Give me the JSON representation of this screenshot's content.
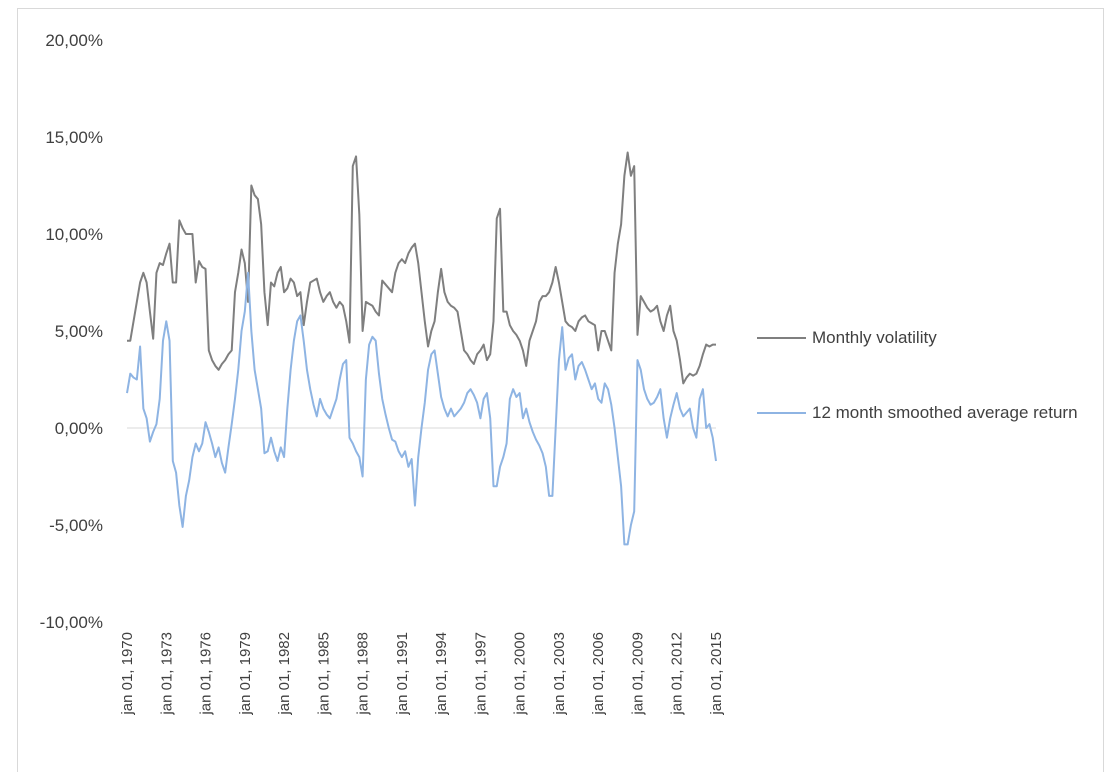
{
  "chart_data": {
    "type": "line",
    "categories": [
      "jan 01, 1970",
      null,
      null,
      null,
      null,
      null,
      null,
      null,
      null,
      null,
      null,
      null,
      "jan 01, 1973",
      null,
      null,
      null,
      null,
      null,
      null,
      null,
      null,
      null,
      null,
      null,
      "jan 01, 1976",
      null,
      null,
      null,
      null,
      null,
      null,
      null,
      null,
      null,
      null,
      null,
      "jan 01, 1979",
      null,
      null,
      null,
      null,
      null,
      null,
      null,
      null,
      null,
      null,
      null,
      "jan 01, 1982",
      null,
      null,
      null,
      null,
      null,
      null,
      null,
      null,
      null,
      null,
      null,
      "jan 01, 1985",
      null,
      null,
      null,
      null,
      null,
      null,
      null,
      null,
      null,
      null,
      null,
      "jan 01, 1988",
      null,
      null,
      null,
      null,
      null,
      null,
      null,
      null,
      null,
      null,
      null,
      "jan 01, 1991",
      null,
      null,
      null,
      null,
      null,
      null,
      null,
      null,
      null,
      null,
      null,
      "jan 01, 1994",
      null,
      null,
      null,
      null,
      null,
      null,
      null,
      null,
      null,
      null,
      null,
      "jan 01, 1997",
      null,
      null,
      null,
      null,
      null,
      null,
      null,
      null,
      null,
      null,
      null,
      "jan 01, 2000",
      null,
      null,
      null,
      null,
      null,
      null,
      null,
      null,
      null,
      null,
      null,
      "jan 01, 2003",
      null,
      null,
      null,
      null,
      null,
      null,
      null,
      null,
      null,
      null,
      null,
      "jan 01, 2006",
      null,
      null,
      null,
      null,
      null,
      null,
      null,
      null,
      null,
      null,
      null,
      "jan 01, 2009",
      null,
      null,
      null,
      null,
      null,
      null,
      null,
      null,
      null,
      null,
      null,
      "jan 01, 2012",
      null,
      null,
      null,
      null,
      null,
      null,
      null,
      null,
      null,
      null,
      null,
      "jan 01, 2015"
    ],
    "series": [
      {
        "name": "Monthly volatility",
        "color": "#7f7f7f",
        "values": [
          4.5,
          4.5,
          5.5,
          6.5,
          7.5,
          8.0,
          7.5,
          6.0,
          4.6,
          8.0,
          8.5,
          8.4,
          9.0,
          9.5,
          7.5,
          7.5,
          10.7,
          10.3,
          10.0,
          10.0,
          10.0,
          7.5,
          8.6,
          8.3,
          8.2,
          4.0,
          3.5,
          3.2,
          3.0,
          3.3,
          3.5,
          3.8,
          4.0,
          7.0,
          8.0,
          9.2,
          8.5,
          6.5,
          12.5,
          12.0,
          11.8,
          10.5,
          7.0,
          5.3,
          7.5,
          7.3,
          8.0,
          8.3,
          7.0,
          7.2,
          7.7,
          7.5,
          6.8,
          7.0,
          5.3,
          6.5,
          7.5,
          7.6,
          7.7,
          7.0,
          6.5,
          6.8,
          7.0,
          6.5,
          6.2,
          6.5,
          6.3,
          5.5,
          4.4,
          13.5,
          14.0,
          11.0,
          5.0,
          6.5,
          6.4,
          6.3,
          6.0,
          5.8,
          7.6,
          7.4,
          7.2,
          7.0,
          8.0,
          8.5,
          8.7,
          8.5,
          9.0,
          9.3,
          9.5,
          8.5,
          7.0,
          5.5,
          4.2,
          5.0,
          5.5,
          7.0,
          8.2,
          7.0,
          6.5,
          6.3,
          6.2,
          6.0,
          5.0,
          4.0,
          3.8,
          3.5,
          3.3,
          3.8,
          4.0,
          4.3,
          3.5,
          3.8,
          5.5,
          10.8,
          11.3,
          6.0,
          6.0,
          5.3,
          5.0,
          4.8,
          4.5,
          4.0,
          3.2,
          4.5,
          5.0,
          5.5,
          6.5,
          6.8,
          6.8,
          7.0,
          7.5,
          8.3,
          7.5,
          6.5,
          5.5,
          5.3,
          5.2,
          5.0,
          5.5,
          5.7,
          5.8,
          5.5,
          5.4,
          5.3,
          4.0,
          5.0,
          5.0,
          4.5,
          4.0,
          8.0,
          9.5,
          10.5,
          13.0,
          14.2,
          13.0,
          13.5,
          4.8,
          6.8,
          6.5,
          6.2,
          6.0,
          6.1,
          6.3,
          5.5,
          5.0,
          5.8,
          6.3,
          5.0,
          4.5,
          3.5,
          2.3,
          2.6,
          2.8,
          2.7,
          2.8,
          3.2,
          3.8,
          4.3,
          4.2,
          4.3,
          4.3
        ]
      },
      {
        "name": "12 month smoothed average return",
        "color": "#8eb4e3",
        "values": [
          1.8,
          2.8,
          2.6,
          2.5,
          4.2,
          1.0,
          0.5,
          -0.7,
          -0.2,
          0.2,
          1.5,
          4.5,
          5.5,
          4.5,
          -1.7,
          -2.3,
          -4.0,
          -5.1,
          -3.5,
          -2.7,
          -1.5,
          -0.8,
          -1.2,
          -0.8,
          0.3,
          -0.2,
          -0.8,
          -1.5,
          -1.0,
          -1.8,
          -2.3,
          -1.0,
          0.2,
          1.5,
          3.0,
          5.0,
          6.0,
          8.0,
          5.0,
          3.0,
          2.0,
          1.0,
          -1.3,
          -1.2,
          -0.5,
          -1.2,
          -1.7,
          -1.0,
          -1.5,
          1.0,
          3.0,
          4.5,
          5.5,
          5.8,
          4.5,
          3.0,
          2.0,
          1.2,
          0.6,
          1.5,
          1.0,
          0.7,
          0.5,
          1.0,
          1.5,
          2.5,
          3.3,
          3.5,
          -0.5,
          -0.8,
          -1.2,
          -1.5,
          -2.5,
          2.5,
          4.3,
          4.7,
          4.5,
          2.8,
          1.5,
          0.7,
          0.0,
          -0.6,
          -0.7,
          -1.2,
          -1.5,
          -1.2,
          -2.0,
          -1.6,
          -4.0,
          -1.5,
          0.0,
          1.3,
          3.0,
          3.8,
          4.0,
          2.8,
          1.6,
          1.0,
          0.6,
          1.0,
          0.6,
          0.8,
          1.0,
          1.3,
          1.8,
          2.0,
          1.7,
          1.3,
          0.5,
          1.5,
          1.8,
          0.5,
          -3.0,
          -3.0,
          -2.0,
          -1.5,
          -0.8,
          1.5,
          2.0,
          1.6,
          1.8,
          0.5,
          1.0,
          0.3,
          -0.2,
          -0.6,
          -0.9,
          -1.3,
          -2.0,
          -3.5,
          -3.5,
          0.0,
          3.5,
          5.2,
          3.0,
          3.6,
          3.8,
          2.5,
          3.2,
          3.4,
          3.0,
          2.5,
          2.0,
          2.3,
          1.5,
          1.3,
          2.3,
          2.0,
          1.2,
          0.0,
          -1.5,
          -3.0,
          -6.0,
          -6.0,
          -5.0,
          -4.3,
          3.5,
          3.0,
          2.0,
          1.5,
          1.2,
          1.3,
          1.6,
          2.0,
          0.5,
          -0.5,
          0.5,
          1.2,
          1.8,
          1.0,
          0.6,
          0.8,
          1.0,
          0.0,
          -0.5,
          1.5,
          2.0,
          0.0,
          0.2,
          -0.5,
          -1.7
        ]
      }
    ],
    "ylim": [
      -10,
      20
    ],
    "yticks": [
      {
        "value": -10,
        "label": "-10,00%"
      },
      {
        "value": -5,
        "label": "-5,00%"
      },
      {
        "value": 0,
        "label": "0,00%"
      },
      {
        "value": 5,
        "label": "5,00%"
      },
      {
        "value": 10,
        "label": "10,00%"
      },
      {
        "value": 15,
        "label": "15,00%"
      },
      {
        "value": 20,
        "label": "20,00%"
      }
    ],
    "grid": false,
    "zero_line": true,
    "legend": "right"
  }
}
